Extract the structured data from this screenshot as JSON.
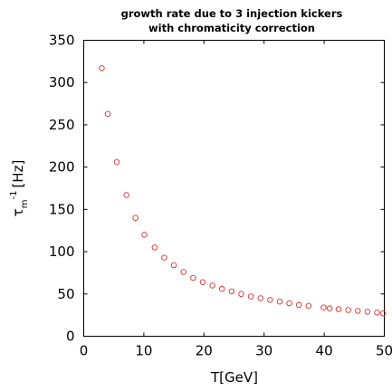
{
  "chart_data": {
    "type": "scatter",
    "title_lines": [
      "growth rate due to 3 injection kickers",
      "with chromaticity correction"
    ],
    "xlabel": "T[GeV]",
    "ylabel": {
      "symbol": "τ",
      "subscript": "m",
      "superscript": "-1",
      "unit": "[Hz]"
    },
    "xlim": [
      0,
      50
    ],
    "ylim": [
      0,
      350
    ],
    "xticks": [
      0,
      10,
      20,
      30,
      40,
      50
    ],
    "yticks": [
      0,
      50,
      100,
      150,
      200,
      250,
      300,
      350
    ],
    "grid": false,
    "marker": "open-circle",
    "color": "#d9302c",
    "points": [
      {
        "x": 3.0,
        "y": 317
      },
      {
        "x": 4.0,
        "y": 263
      },
      {
        "x": 5.5,
        "y": 206
      },
      {
        "x": 7.1,
        "y": 167
      },
      {
        "x": 8.6,
        "y": 140
      },
      {
        "x": 10.1,
        "y": 120
      },
      {
        "x": 11.8,
        "y": 105
      },
      {
        "x": 13.4,
        "y": 93
      },
      {
        "x": 15.0,
        "y": 84
      },
      {
        "x": 16.6,
        "y": 76
      },
      {
        "x": 18.2,
        "y": 69
      },
      {
        "x": 19.8,
        "y": 64
      },
      {
        "x": 21.4,
        "y": 60
      },
      {
        "x": 23.0,
        "y": 56
      },
      {
        "x": 24.6,
        "y": 53
      },
      {
        "x": 26.2,
        "y": 50
      },
      {
        "x": 27.8,
        "y": 47
      },
      {
        "x": 29.4,
        "y": 45
      },
      {
        "x": 31.0,
        "y": 43
      },
      {
        "x": 32.6,
        "y": 41
      },
      {
        "x": 34.2,
        "y": 39
      },
      {
        "x": 35.8,
        "y": 37
      },
      {
        "x": 37.4,
        "y": 36
      },
      {
        "x": 39.9,
        "y": 34
      },
      {
        "x": 40.9,
        "y": 33
      },
      {
        "x": 42.4,
        "y": 32
      },
      {
        "x": 44.0,
        "y": 31
      },
      {
        "x": 45.6,
        "y": 30
      },
      {
        "x": 47.2,
        "y": 29
      },
      {
        "x": 48.8,
        "y": 28
      },
      {
        "x": 49.8,
        "y": 27
      }
    ]
  }
}
